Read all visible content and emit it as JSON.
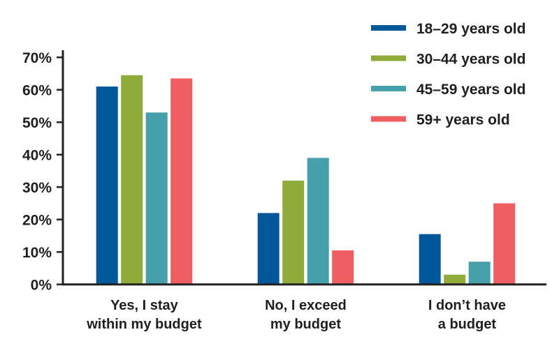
{
  "chart_data": {
    "type": "bar",
    "title": "",
    "xlabel": "",
    "ylabel": "",
    "ylim": [
      0,
      70
    ],
    "yticks": [
      "0%",
      "10%",
      "20%",
      "30%",
      "40%",
      "50%",
      "60%",
      "70%"
    ],
    "grid": false,
    "legend_position": "top-right",
    "categories": [
      [
        "Yes, I stay",
        "within my budget"
      ],
      [
        "No, I exceed",
        "my budget"
      ],
      [
        "I don’t have",
        "a budget"
      ]
    ],
    "series": [
      {
        "name": "18–29 years old",
        "color": "#00589a",
        "values": [
          61,
          22,
          15.5
        ]
      },
      {
        "name": "30–44 years old",
        "color": "#8fab3a",
        "values": [
          64.5,
          32,
          3
        ]
      },
      {
        "name": "45–59 years old",
        "color": "#45a0ac",
        "values": [
          53,
          39,
          7
        ]
      },
      {
        "name": "59+ years old",
        "color": "#ef5f62",
        "values": [
          63.5,
          10.5,
          25
        ]
      }
    ]
  }
}
